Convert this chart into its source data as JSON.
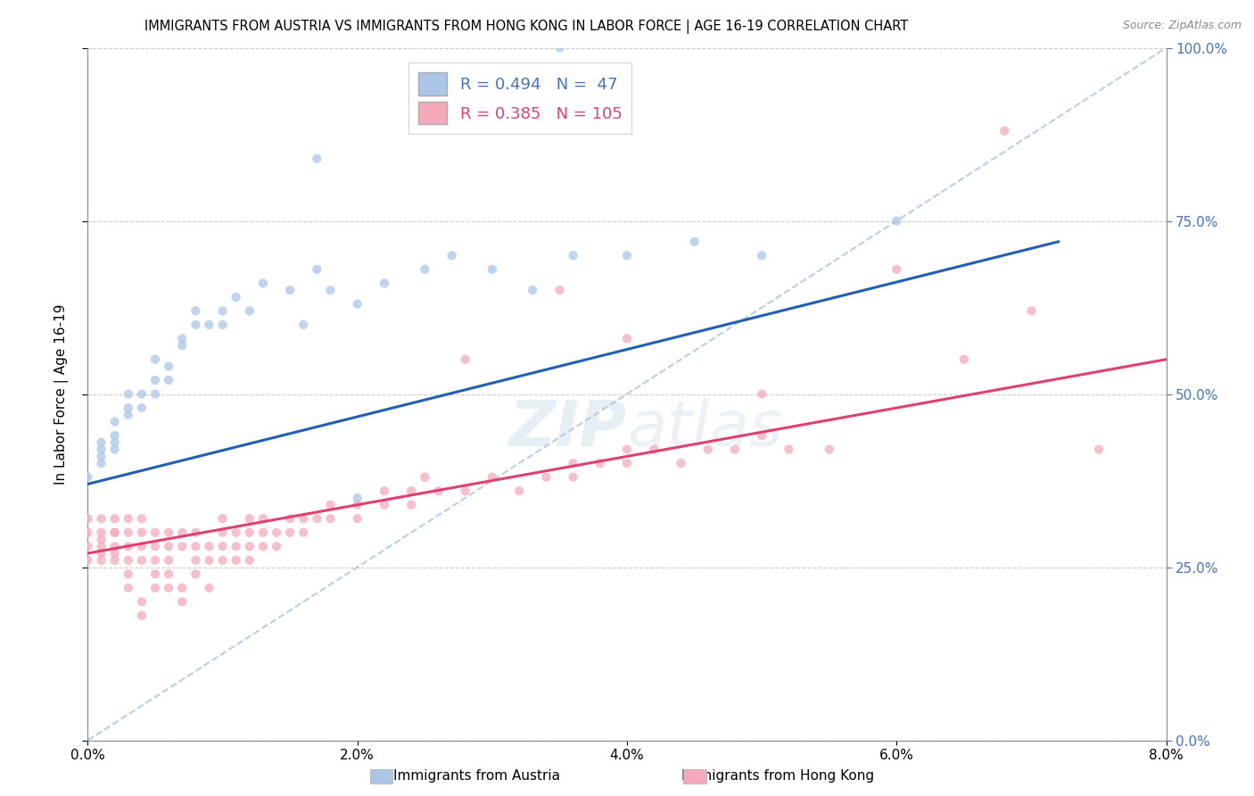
{
  "title": "IMMIGRANTS FROM AUSTRIA VS IMMIGRANTS FROM HONG KONG IN LABOR FORCE | AGE 16-19 CORRELATION CHART",
  "source": "Source: ZipAtlas.com",
  "ylabel": "In Labor Force | Age 16-19",
  "legend_labels": [
    "Immigrants from Austria",
    "Immigrants from Hong Kong"
  ],
  "R_austria": 0.494,
  "N_austria": 47,
  "R_hongkong": 0.385,
  "N_hongkong": 105,
  "xlim": [
    0.0,
    0.08
  ],
  "ylim": [
    0.0,
    1.0
  ],
  "right_yticklabels": [
    "0.0%",
    "25.0%",
    "50.0%",
    "75.0%",
    "100.0%"
  ],
  "xticklabels": [
    "0.0%",
    "2.0%",
    "4.0%",
    "6.0%",
    "8.0%"
  ],
  "color_austria": "#adc6e8",
  "color_hongkong": "#f5aabb",
  "color_austria_line": "#2060b0",
  "color_hongkong_line": "#e04070",
  "color_diag_line": "#b8d0e0",
  "austria_line_x": [
    0.0,
    0.072
  ],
  "austria_line_y": [
    0.37,
    0.72
  ],
  "hongkong_line_x": [
    0.0,
    0.08
  ],
  "hongkong_line_y": [
    0.27,
    0.55
  ],
  "diag_line_x": [
    0.0,
    0.08
  ],
  "diag_line_y": [
    0.0,
    1.0
  ],
  "austria_points": [
    [
      0.0,
      0.38
    ],
    [
      0.001,
      0.4
    ],
    [
      0.001,
      0.42
    ],
    [
      0.001,
      0.43
    ],
    [
      0.001,
      0.41
    ],
    [
      0.002,
      0.44
    ],
    [
      0.002,
      0.43
    ],
    [
      0.002,
      0.42
    ],
    [
      0.002,
      0.46
    ],
    [
      0.003,
      0.48
    ],
    [
      0.003,
      0.5
    ],
    [
      0.003,
      0.47
    ],
    [
      0.004,
      0.5
    ],
    [
      0.004,
      0.48
    ],
    [
      0.005,
      0.52
    ],
    [
      0.005,
      0.5
    ],
    [
      0.005,
      0.55
    ],
    [
      0.006,
      0.54
    ],
    [
      0.006,
      0.52
    ],
    [
      0.007,
      0.58
    ],
    [
      0.007,
      0.57
    ],
    [
      0.008,
      0.6
    ],
    [
      0.008,
      0.62
    ],
    [
      0.009,
      0.6
    ],
    [
      0.01,
      0.6
    ],
    [
      0.01,
      0.62
    ],
    [
      0.011,
      0.64
    ],
    [
      0.012,
      0.62
    ],
    [
      0.013,
      0.66
    ],
    [
      0.015,
      0.65
    ],
    [
      0.016,
      0.6
    ],
    [
      0.017,
      0.68
    ],
    [
      0.018,
      0.65
    ],
    [
      0.02,
      0.63
    ],
    [
      0.022,
      0.66
    ],
    [
      0.025,
      0.68
    ],
    [
      0.027,
      0.7
    ],
    [
      0.03,
      0.68
    ],
    [
      0.033,
      0.65
    ],
    [
      0.036,
      0.7
    ],
    [
      0.04,
      0.7
    ],
    [
      0.045,
      0.72
    ],
    [
      0.035,
      1.0
    ],
    [
      0.017,
      0.84
    ],
    [
      0.05,
      0.7
    ],
    [
      0.06,
      0.75
    ],
    [
      0.02,
      0.35
    ]
  ],
  "hongkong_points": [
    [
      0.0,
      0.3
    ],
    [
      0.0,
      0.28
    ],
    [
      0.0,
      0.26
    ],
    [
      0.0,
      0.32
    ],
    [
      0.001,
      0.3
    ],
    [
      0.001,
      0.28
    ],
    [
      0.001,
      0.26
    ],
    [
      0.001,
      0.32
    ],
    [
      0.001,
      0.27
    ],
    [
      0.001,
      0.29
    ],
    [
      0.002,
      0.28
    ],
    [
      0.002,
      0.26
    ],
    [
      0.002,
      0.3
    ],
    [
      0.002,
      0.32
    ],
    [
      0.002,
      0.27
    ],
    [
      0.002,
      0.3
    ],
    [
      0.003,
      0.28
    ],
    [
      0.003,
      0.26
    ],
    [
      0.003,
      0.3
    ],
    [
      0.003,
      0.32
    ],
    [
      0.003,
      0.24
    ],
    [
      0.003,
      0.22
    ],
    [
      0.004,
      0.28
    ],
    [
      0.004,
      0.26
    ],
    [
      0.004,
      0.3
    ],
    [
      0.004,
      0.32
    ],
    [
      0.004,
      0.2
    ],
    [
      0.004,
      0.18
    ],
    [
      0.005,
      0.3
    ],
    [
      0.005,
      0.28
    ],
    [
      0.005,
      0.24
    ],
    [
      0.005,
      0.22
    ],
    [
      0.005,
      0.26
    ],
    [
      0.006,
      0.28
    ],
    [
      0.006,
      0.3
    ],
    [
      0.006,
      0.24
    ],
    [
      0.006,
      0.22
    ],
    [
      0.006,
      0.26
    ],
    [
      0.007,
      0.28
    ],
    [
      0.007,
      0.3
    ],
    [
      0.007,
      0.22
    ],
    [
      0.007,
      0.2
    ],
    [
      0.008,
      0.28
    ],
    [
      0.008,
      0.26
    ],
    [
      0.008,
      0.3
    ],
    [
      0.008,
      0.24
    ],
    [
      0.009,
      0.26
    ],
    [
      0.009,
      0.28
    ],
    [
      0.009,
      0.22
    ],
    [
      0.01,
      0.3
    ],
    [
      0.01,
      0.28
    ],
    [
      0.01,
      0.32
    ],
    [
      0.01,
      0.26
    ],
    [
      0.011,
      0.28
    ],
    [
      0.011,
      0.3
    ],
    [
      0.011,
      0.26
    ],
    [
      0.012,
      0.3
    ],
    [
      0.012,
      0.28
    ],
    [
      0.012,
      0.26
    ],
    [
      0.012,
      0.32
    ],
    [
      0.013,
      0.3
    ],
    [
      0.013,
      0.32
    ],
    [
      0.013,
      0.28
    ],
    [
      0.014,
      0.3
    ],
    [
      0.014,
      0.28
    ],
    [
      0.015,
      0.32
    ],
    [
      0.015,
      0.3
    ],
    [
      0.016,
      0.32
    ],
    [
      0.016,
      0.3
    ],
    [
      0.017,
      0.32
    ],
    [
      0.018,
      0.34
    ],
    [
      0.018,
      0.32
    ],
    [
      0.02,
      0.34
    ],
    [
      0.02,
      0.32
    ],
    [
      0.022,
      0.36
    ],
    [
      0.022,
      0.34
    ],
    [
      0.024,
      0.36
    ],
    [
      0.024,
      0.34
    ],
    [
      0.025,
      0.38
    ],
    [
      0.026,
      0.36
    ],
    [
      0.028,
      0.36
    ],
    [
      0.03,
      0.38
    ],
    [
      0.032,
      0.36
    ],
    [
      0.034,
      0.38
    ],
    [
      0.036,
      0.4
    ],
    [
      0.036,
      0.38
    ],
    [
      0.038,
      0.4
    ],
    [
      0.04,
      0.42
    ],
    [
      0.04,
      0.4
    ],
    [
      0.042,
      0.42
    ],
    [
      0.044,
      0.4
    ],
    [
      0.046,
      0.42
    ],
    [
      0.048,
      0.42
    ],
    [
      0.05,
      0.44
    ],
    [
      0.052,
      0.42
    ],
    [
      0.055,
      0.42
    ],
    [
      0.028,
      0.55
    ],
    [
      0.035,
      0.65
    ],
    [
      0.04,
      0.58
    ],
    [
      0.05,
      0.5
    ],
    [
      0.06,
      0.68
    ],
    [
      0.065,
      0.55
    ],
    [
      0.07,
      0.62
    ],
    [
      0.075,
      0.42
    ],
    [
      0.068,
      0.88
    ]
  ]
}
